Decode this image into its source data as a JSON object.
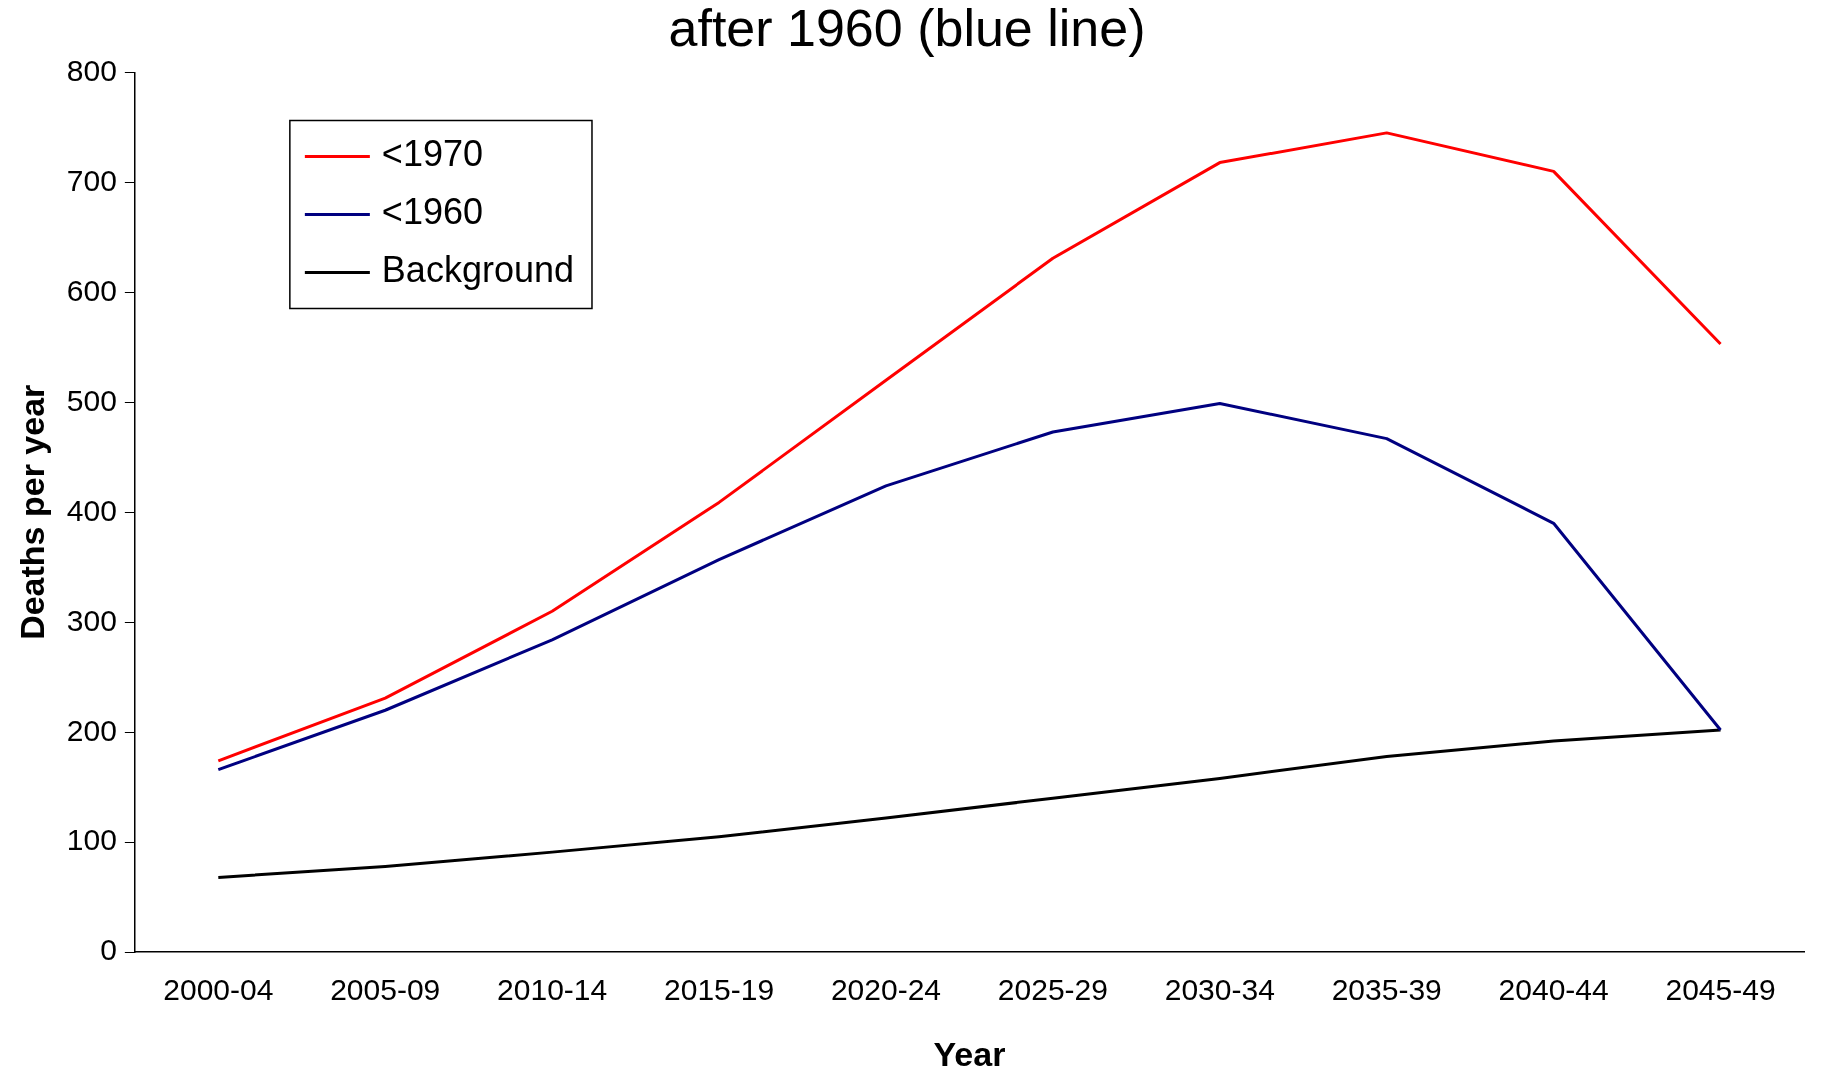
{
  "chart_data": {
    "type": "line",
    "title": "after 1960 (blue line)",
    "xlabel": "Year",
    "ylabel": "Deaths per year",
    "categories": [
      "2000-04",
      "2005-09",
      "2010-14",
      "2015-19",
      "2020-24",
      "2025-29",
      "2030-34",
      "2035-39",
      "2040-44",
      "2045-49"
    ],
    "series": [
      {
        "name": "<1970",
        "color": "#ff0000",
        "values": [
          174,
          231,
          310,
          409,
          520,
          631,
          718,
          745,
          710,
          553
        ]
      },
      {
        "name": "<1960",
        "color": "#000080",
        "values": [
          166,
          220,
          284,
          357,
          424,
          473,
          499,
          467,
          390,
          202
        ]
      },
      {
        "name": "Background",
        "color": "#000000",
        "values": [
          68,
          78,
          91,
          105,
          122,
          140,
          158,
          178,
          192,
          202
        ]
      }
    ],
    "ylim": [
      0,
      800
    ],
    "yticks": [
      0,
      100,
      200,
      300,
      400,
      500,
      600,
      700,
      800
    ],
    "grid": false,
    "legend": "top left",
    "marker": "none",
    "line_style": "solid"
  }
}
